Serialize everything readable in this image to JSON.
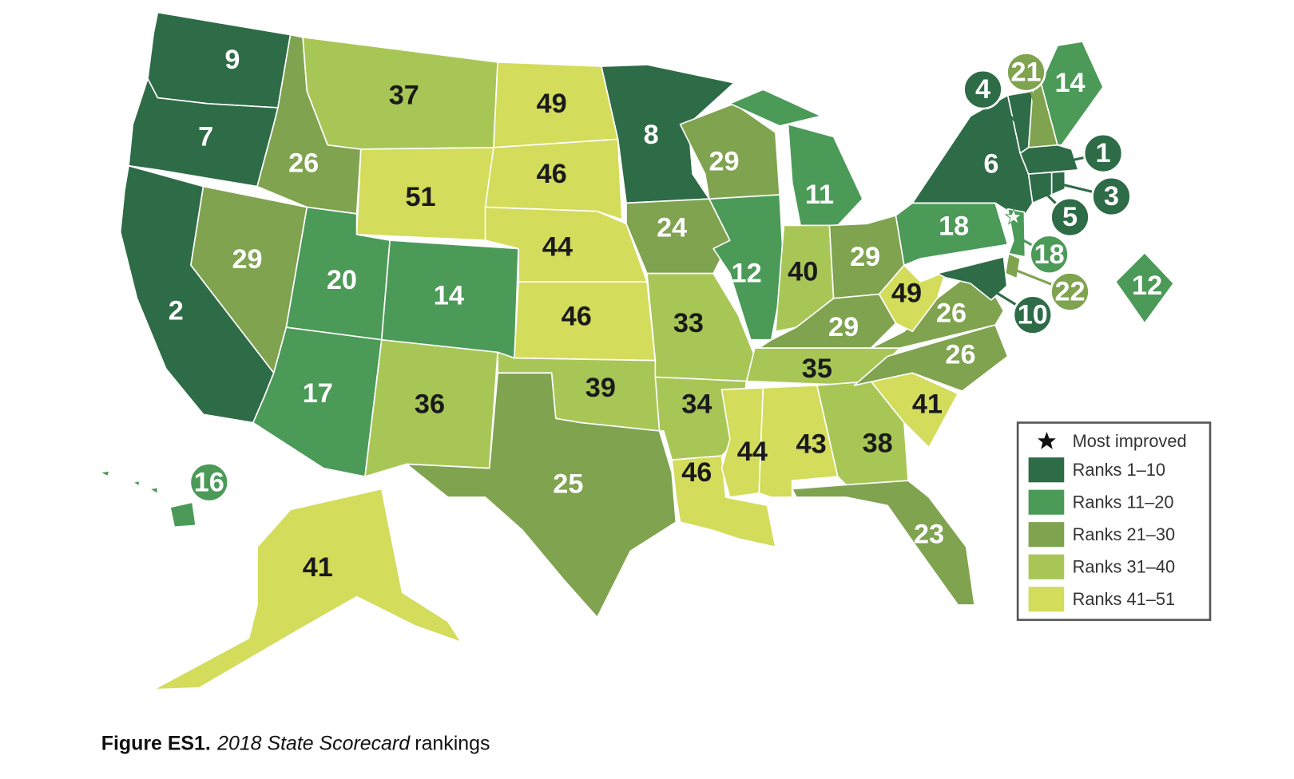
{
  "map": {
    "states": [
      {
        "rank": 9,
        "color": "#2e6b47"
      },
      {
        "rank": 7,
        "color": "#2e6b47"
      },
      {
        "rank": 2,
        "color": "#2e6b47"
      },
      {
        "rank": 29,
        "color": "#7fa34f"
      },
      {
        "rank": 26,
        "color": "#7fa34f"
      },
      {
        "rank": 37,
        "color": "#a8c656"
      },
      {
        "rank": 51,
        "color": "#d3dc5b"
      },
      {
        "rank": 20,
        "color": "#4b9a58"
      },
      {
        "rank": 14,
        "color": "#4b9a58"
      },
      {
        "rank": 17,
        "color": "#4b9a58"
      },
      {
        "rank": 36,
        "color": "#a8c656"
      },
      {
        "rank": 49,
        "color": "#d3dc5b"
      },
      {
        "rank": 46,
        "color": "#d3dc5b"
      },
      {
        "rank": 44,
        "color": "#d3dc5b"
      },
      {
        "rank": 46,
        "color": "#d3dc5b"
      },
      {
        "rank": 39,
        "color": "#a8c656"
      },
      {
        "rank": 25,
        "color": "#7fa34f"
      },
      {
        "rank": 8,
        "color": "#2e6b47"
      },
      {
        "rank": 24,
        "color": "#7fa34f"
      },
      {
        "rank": 33,
        "color": "#a8c656"
      },
      {
        "rank": 34,
        "color": "#a8c656"
      },
      {
        "rank": 46,
        "color": "#d3dc5b"
      },
      {
        "rank": 29,
        "color": "#7fa34f"
      },
      {
        "rank": 12,
        "color": "#4b9a58"
      },
      {
        "rank": 11,
        "color": "#4b9a58"
      },
      {
        "rank": 40,
        "color": "#a8c656"
      },
      {
        "rank": 29,
        "color": "#7fa34f"
      },
      {
        "rank": 29,
        "color": "#7fa34f"
      },
      {
        "rank": 35,
        "color": "#a8c656"
      },
      {
        "rank": 44,
        "color": "#d3dc5b"
      },
      {
        "rank": 43,
        "color": "#d3dc5b"
      },
      {
        "rank": 38,
        "color": "#a8c656"
      },
      {
        "rank": 23,
        "color": "#7fa34f"
      },
      {
        "rank": 41,
        "color": "#d3dc5b"
      },
      {
        "rank": 26,
        "color": "#7fa34f"
      },
      {
        "rank": 26,
        "color": "#7fa34f"
      },
      {
        "rank": 49,
        "color": "#d3dc5b"
      },
      {
        "rank": 18,
        "color": "#4b9a58"
      },
      {
        "rank": 6,
        "color": "#2e6b47"
      },
      {
        "rank": 4,
        "color": "#2e6b47"
      },
      {
        "rank": 21,
        "color": "#7fa34f"
      },
      {
        "rank": 14,
        "color": "#4b9a58"
      },
      {
        "rank": 1,
        "color": "#2e6b47"
      },
      {
        "rank": 5,
        "color": "#2e6b47"
      },
      {
        "rank": 3,
        "color": "#2e6b47"
      },
      {
        "rank": 18,
        "color": "#4b9a58",
        "most_improved": true
      },
      {
        "rank": 22,
        "color": "#7fa34f"
      },
      {
        "rank": 10,
        "color": "#2e6b47"
      },
      {
        "rank": 12,
        "color": "#4b9a58"
      },
      {
        "rank": 41,
        "color": "#d3dc5b"
      },
      {
        "rank": 16,
        "color": "#4b9a58"
      }
    ],
    "legend": {
      "most_improved": "Most improved",
      "items": [
        {
          "label": "Ranks 1–10",
          "color": "#2e6b47"
        },
        {
          "label": "Ranks 11–20",
          "color": "#4b9a58"
        },
        {
          "label": "Ranks 21–30",
          "color": "#7fa34f"
        },
        {
          "label": "Ranks 31–40",
          "color": "#a8c656"
        },
        {
          "label": "Ranks 41–51",
          "color": "#d3dc5b"
        }
      ]
    }
  },
  "caption": {
    "prefix": "Figure ES1.",
    "title": "2018 State Scorecard",
    "suffix": "rankings"
  }
}
